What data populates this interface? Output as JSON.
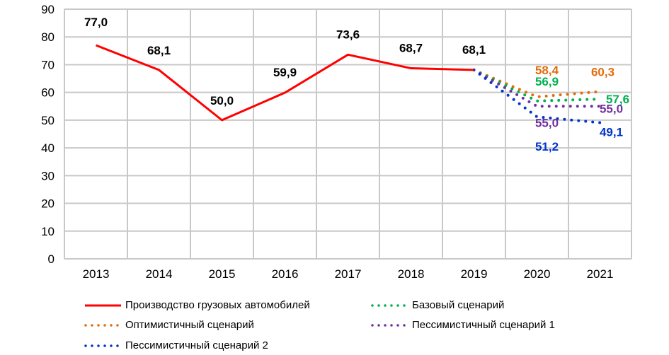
{
  "chart_data": {
    "type": "line",
    "title": "",
    "xlabel": "",
    "ylabel": "",
    "ylim": [
      0,
      90
    ],
    "yticks": [
      0,
      10,
      20,
      30,
      40,
      50,
      60,
      70,
      80,
      90
    ],
    "grid": true,
    "legend_position": "bottom",
    "categories": [
      "2013",
      "2014",
      "2015",
      "2016",
      "2017",
      "2018",
      "2019",
      "2020",
      "2021"
    ],
    "series": [
      {
        "name": "Производство грузовых автомобилей",
        "style": "solid",
        "color": "#ff0000",
        "values": [
          77.0,
          68.1,
          50.0,
          59.9,
          73.6,
          68.7,
          68.1,
          null,
          null
        ],
        "labels": [
          "77,0",
          "68,1",
          "50,0",
          "59,9",
          "73,6",
          "68,7",
          "68,1",
          null,
          null
        ]
      },
      {
        "name": "Базовый сценарий",
        "style": "dotted",
        "color": "#00b050",
        "values": [
          null,
          null,
          null,
          null,
          null,
          null,
          68.1,
          56.9,
          57.6
        ],
        "labels": [
          null,
          null,
          null,
          null,
          null,
          null,
          null,
          "56,9",
          "57,6"
        ]
      },
      {
        "name": "Оптимистичный сценарий",
        "style": "dotted",
        "color": "#e36c09",
        "values": [
          null,
          null,
          null,
          null,
          null,
          null,
          68.1,
          58.4,
          60.3
        ],
        "labels": [
          null,
          null,
          null,
          null,
          null,
          null,
          null,
          "58,4",
          "60,3"
        ]
      },
      {
        "name": "Пессимистичный сценарий 1",
        "style": "dotted",
        "color": "#7030a0",
        "values": [
          null,
          null,
          null,
          null,
          null,
          null,
          68.1,
          55.0,
          55.0
        ],
        "labels": [
          null,
          null,
          null,
          null,
          null,
          null,
          null,
          "55,0",
          "55,0"
        ]
      },
      {
        "name": "Пессимистичный сценарий 2",
        "style": "dotted",
        "color": "#0033cc",
        "values": [
          null,
          null,
          null,
          null,
          null,
          null,
          68.1,
          51.2,
          49.1
        ],
        "labels": [
          null,
          null,
          null,
          null,
          null,
          null,
          null,
          "51,2",
          "49,1"
        ]
      }
    ]
  },
  "legend": {
    "items": [
      {
        "label": "Производство грузовых автомобилей",
        "color": "#ff0000",
        "style": "solid"
      },
      {
        "label": "Базовый сценарий",
        "color": "#00b050",
        "style": "dotted"
      },
      {
        "label": "Оптимистичный сценарий",
        "color": "#e36c09",
        "style": "dotted"
      },
      {
        "label": "Пессимистичный сценарий 1",
        "color": "#7030a0",
        "style": "dotted"
      },
      {
        "label": "Пессимистичный сценарий 2",
        "color": "#0033cc",
        "style": "dotted"
      }
    ]
  }
}
